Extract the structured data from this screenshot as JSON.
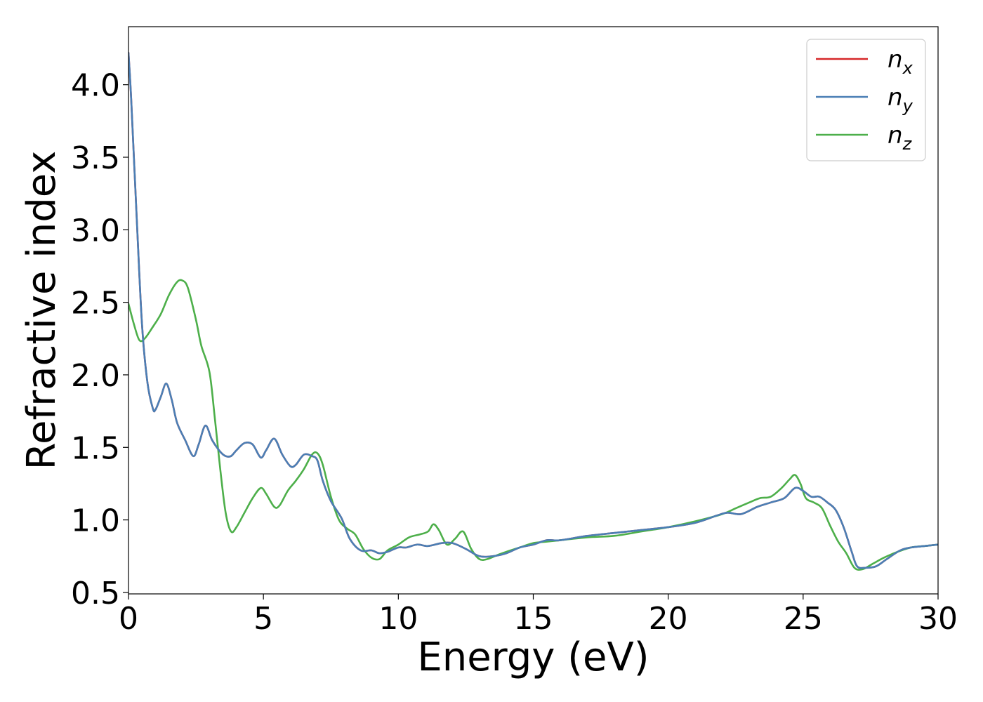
{
  "chart_data": {
    "type": "line",
    "title": "",
    "xlabel": "Energy (eV)",
    "ylabel": "Refractive index",
    "xlim": [
      0,
      30
    ],
    "ylim": [
      0.49,
      4.4
    ],
    "xticks": [
      0,
      5,
      10,
      15,
      20,
      25,
      30
    ],
    "xtick_labels": [
      "0",
      "5",
      "10",
      "15",
      "20",
      "25",
      "30"
    ],
    "yticks": [
      0.5,
      1.0,
      1.5,
      2.0,
      2.5,
      3.0,
      3.5,
      4.0
    ],
    "ytick_labels": [
      "0.5",
      "1.0",
      "1.5",
      "2.0",
      "2.5",
      "3.0",
      "3.5",
      "4.0"
    ],
    "grid": false,
    "legend_position": "top-right",
    "series": [
      {
        "name": "n_x",
        "legend_main": "n",
        "legend_sub": "x",
        "color": "#d62728",
        "x": [
          0,
          0.1,
          0.3,
          0.5,
          0.7,
          0.9,
          1.0,
          1.2,
          1.4,
          1.6,
          1.8,
          2.1,
          2.4,
          2.6,
          2.85,
          3.1,
          3.4,
          3.6,
          3.8,
          4.0,
          4.3,
          4.6,
          4.9,
          5.1,
          5.4,
          5.7,
          6.0,
          6.2,
          6.5,
          6.8,
          7.0,
          7.2,
          7.5,
          7.9,
          8.2,
          8.6,
          9.0,
          9.3,
          9.6,
          10.0,
          10.3,
          10.7,
          11.1,
          11.6,
          12.0,
          12.5,
          13.0,
          13.5,
          14.0,
          14.5,
          15.0,
          15.5,
          16.0,
          17.0,
          18.0,
          19.0,
          20.0,
          21.0,
          21.8,
          22.2,
          22.7,
          23.3,
          23.8,
          24.3,
          24.7,
          25.0,
          25.3,
          25.6,
          25.9,
          26.2,
          26.5,
          26.8,
          27.0,
          27.3,
          27.7,
          28.1,
          28.6,
          29.0,
          29.5,
          30.0
        ],
        "y": [
          4.22,
          3.9,
          3.1,
          2.35,
          1.95,
          1.77,
          1.76,
          1.85,
          1.94,
          1.83,
          1.67,
          1.55,
          1.44,
          1.52,
          1.65,
          1.55,
          1.47,
          1.44,
          1.44,
          1.48,
          1.53,
          1.52,
          1.43,
          1.48,
          1.56,
          1.45,
          1.37,
          1.38,
          1.45,
          1.44,
          1.41,
          1.27,
          1.13,
          1.01,
          0.87,
          0.79,
          0.79,
          0.77,
          0.78,
          0.81,
          0.81,
          0.83,
          0.82,
          0.84,
          0.84,
          0.8,
          0.75,
          0.75,
          0.77,
          0.81,
          0.83,
          0.86,
          0.86,
          0.89,
          0.91,
          0.93,
          0.95,
          0.98,
          1.03,
          1.05,
          1.04,
          1.09,
          1.12,
          1.15,
          1.22,
          1.2,
          1.16,
          1.16,
          1.12,
          1.07,
          0.95,
          0.78,
          0.68,
          0.67,
          0.68,
          0.73,
          0.79,
          0.81,
          0.82,
          0.83
        ]
      },
      {
        "name": "n_y",
        "legend_main": "n",
        "legend_sub": "y",
        "color": "#4a7fb5",
        "x": [
          0,
          0.1,
          0.3,
          0.5,
          0.7,
          0.9,
          1.0,
          1.2,
          1.4,
          1.6,
          1.8,
          2.1,
          2.4,
          2.6,
          2.85,
          3.1,
          3.4,
          3.6,
          3.8,
          4.0,
          4.3,
          4.6,
          4.9,
          5.1,
          5.4,
          5.7,
          6.0,
          6.2,
          6.5,
          6.8,
          7.0,
          7.2,
          7.5,
          7.9,
          8.2,
          8.6,
          9.0,
          9.3,
          9.6,
          10.0,
          10.3,
          10.7,
          11.1,
          11.6,
          12.0,
          12.5,
          13.0,
          13.5,
          14.0,
          14.5,
          15.0,
          15.5,
          16.0,
          17.0,
          18.0,
          19.0,
          20.0,
          21.0,
          21.8,
          22.2,
          22.7,
          23.3,
          23.8,
          24.3,
          24.7,
          25.0,
          25.3,
          25.6,
          25.9,
          26.2,
          26.5,
          26.8,
          27.0,
          27.3,
          27.7,
          28.1,
          28.6,
          29.0,
          29.5,
          30.0
        ],
        "y": [
          4.22,
          3.9,
          3.1,
          2.35,
          1.95,
          1.77,
          1.76,
          1.85,
          1.94,
          1.83,
          1.67,
          1.55,
          1.44,
          1.52,
          1.65,
          1.55,
          1.47,
          1.44,
          1.44,
          1.48,
          1.53,
          1.52,
          1.43,
          1.48,
          1.56,
          1.45,
          1.37,
          1.38,
          1.45,
          1.44,
          1.41,
          1.27,
          1.13,
          1.01,
          0.87,
          0.79,
          0.79,
          0.77,
          0.78,
          0.81,
          0.81,
          0.83,
          0.82,
          0.84,
          0.84,
          0.8,
          0.75,
          0.75,
          0.77,
          0.81,
          0.83,
          0.86,
          0.86,
          0.89,
          0.91,
          0.93,
          0.95,
          0.98,
          1.03,
          1.05,
          1.04,
          1.09,
          1.12,
          1.15,
          1.22,
          1.2,
          1.16,
          1.16,
          1.12,
          1.07,
          0.95,
          0.78,
          0.68,
          0.67,
          0.68,
          0.73,
          0.79,
          0.81,
          0.82,
          0.83
        ]
      },
      {
        "name": "n_z",
        "legend_main": "n",
        "legend_sub": "z",
        "color": "#4daf4a",
        "x": [
          0,
          0.2,
          0.4,
          0.6,
          0.9,
          1.2,
          1.5,
          1.8,
          2.0,
          2.2,
          2.5,
          2.7,
          3.0,
          3.2,
          3.4,
          3.6,
          3.8,
          4.0,
          4.3,
          4.6,
          4.9,
          5.1,
          5.4,
          5.6,
          5.9,
          6.2,
          6.5,
          6.8,
          7.0,
          7.2,
          7.5,
          7.8,
          8.1,
          8.4,
          8.7,
          9.0,
          9.3,
          9.6,
          10.0,
          10.4,
          10.8,
          11.1,
          11.3,
          11.5,
          11.8,
          12.1,
          12.4,
          12.7,
          13.0,
          13.3,
          13.7,
          14.0,
          14.5,
          15.0,
          15.5,
          16.0,
          17.0,
          18.0,
          19.0,
          20.0,
          21.0,
          22.0,
          22.5,
          23.0,
          23.4,
          23.8,
          24.2,
          24.5,
          24.7,
          24.9,
          25.1,
          25.4,
          25.7,
          26.0,
          26.3,
          26.6,
          26.9,
          27.2,
          27.6,
          28.0,
          28.5,
          29.0,
          29.5,
          30.0
        ],
        "y": [
          2.49,
          2.35,
          2.24,
          2.25,
          2.33,
          2.42,
          2.55,
          2.64,
          2.65,
          2.6,
          2.38,
          2.2,
          2.02,
          1.7,
          1.35,
          1.05,
          0.92,
          0.95,
          1.05,
          1.15,
          1.22,
          1.18,
          1.09,
          1.1,
          1.2,
          1.27,
          1.35,
          1.45,
          1.46,
          1.38,
          1.16,
          1.0,
          0.94,
          0.9,
          0.8,
          0.74,
          0.73,
          0.79,
          0.83,
          0.88,
          0.9,
          0.92,
          0.97,
          0.93,
          0.83,
          0.87,
          0.92,
          0.8,
          0.73,
          0.73,
          0.76,
          0.78,
          0.81,
          0.84,
          0.85,
          0.86,
          0.88,
          0.89,
          0.92,
          0.95,
          0.99,
          1.04,
          1.08,
          1.12,
          1.15,
          1.16,
          1.22,
          1.28,
          1.31,
          1.25,
          1.15,
          1.12,
          1.08,
          0.96,
          0.85,
          0.77,
          0.67,
          0.66,
          0.7,
          0.74,
          0.78,
          0.81,
          0.82,
          0.83
        ]
      }
    ]
  }
}
